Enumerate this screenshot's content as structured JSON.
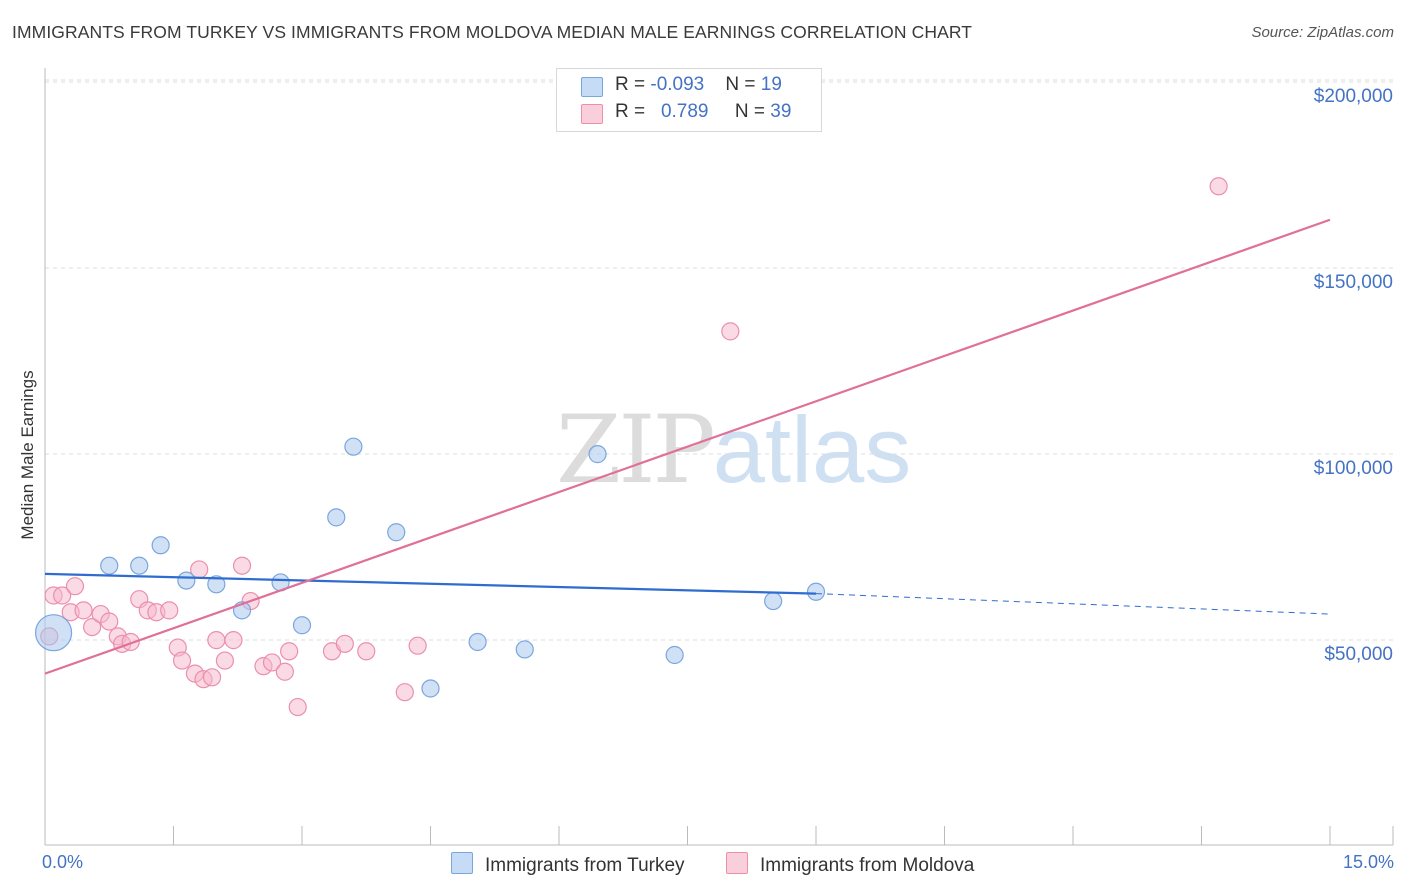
{
  "title": "IMMIGRANTS FROM TURKEY VS IMMIGRANTS FROM MOLDOVA MEDIAN MALE EARNINGS CORRELATION CHART",
  "source": "Source: ZipAtlas.com",
  "watermark": {
    "part1": "ZIP",
    "part2": "atlas"
  },
  "legend": {
    "turkey": {
      "r_label": "R = ",
      "r_value": "-0.093",
      "n_label": "N = ",
      "n_value": "19"
    },
    "moldova": {
      "r_label": "R = ",
      "r_value": "0.789",
      "n_label": "N = ",
      "n_value": "39"
    }
  },
  "colors": {
    "turkey_fill": "#a9c8ef",
    "turkey_stroke": "#7aa6de",
    "turkey_line": "#2f6ccf",
    "moldova_fill": "#f5b7cb",
    "moldova_stroke": "#ec8fac",
    "moldova_line": "#e07099",
    "axis_text": "#4472c4"
  },
  "chart_data": {
    "type": "scatter",
    "title": "IMMIGRANTS FROM TURKEY VS IMMIGRANTS FROM MOLDOVA MEDIAN MALE EARNINGS CORRELATION CHART",
    "xlabel": "",
    "ylabel": "Median Male Earnings",
    "xlim": [
      0,
      15
    ],
    "ylim": [
      5000,
      205000
    ],
    "x_tick_labels": [
      {
        "value": 0,
        "label": "0.0%"
      },
      {
        "value": 15,
        "label": "15.0%"
      }
    ],
    "y_tick_labels": [
      {
        "value": 200000,
        "label": "$200,000"
      },
      {
        "value": 150000,
        "label": "$150,000"
      },
      {
        "value": 100000,
        "label": "$100,000"
      },
      {
        "value": 50000,
        "label": "$50,000"
      }
    ],
    "grid": true,
    "legend_position": "bottom-center",
    "series": [
      {
        "name": "Immigrants from Turkey",
        "color": "#a9c8ef",
        "points": [
          {
            "x": 0.1,
            "y": 56000,
            "large": true
          },
          {
            "x": 0.75,
            "y": 74000
          },
          {
            "x": 1.1,
            "y": 74000
          },
          {
            "x": 1.35,
            "y": 79500
          },
          {
            "x": 1.65,
            "y": 70000
          },
          {
            "x": 2.0,
            "y": 69000
          },
          {
            "x": 2.3,
            "y": 62000
          },
          {
            "x": 2.75,
            "y": 69500
          },
          {
            "x": 3.0,
            "y": 58000
          },
          {
            "x": 3.4,
            "y": 87000
          },
          {
            "x": 3.6,
            "y": 106000
          },
          {
            "x": 4.1,
            "y": 83000
          },
          {
            "x": 4.5,
            "y": 41000
          },
          {
            "x": 5.05,
            "y": 53500
          },
          {
            "x": 5.6,
            "y": 51500
          },
          {
            "x": 6.45,
            "y": 104000
          },
          {
            "x": 7.35,
            "y": 50000
          },
          {
            "x": 8.5,
            "y": 64500
          },
          {
            "x": 9.0,
            "y": 67000
          }
        ],
        "trend": {
          "x1": 0,
          "y1": 71800,
          "x2": 9.0,
          "y2": 66500,
          "dashed_to_x": 15,
          "dashed_to_y": 61000
        }
      },
      {
        "name": "Immigrants from Moldova",
        "color": "#f5b7cb",
        "points": [
          {
            "x": 0.05,
            "y": 55000
          },
          {
            "x": 0.1,
            "y": 66000
          },
          {
            "x": 0.2,
            "y": 66000
          },
          {
            "x": 0.35,
            "y": 68500
          },
          {
            "x": 0.3,
            "y": 61500
          },
          {
            "x": 0.45,
            "y": 62000
          },
          {
            "x": 0.55,
            "y": 57500
          },
          {
            "x": 0.65,
            "y": 61000
          },
          {
            "x": 0.75,
            "y": 59000
          },
          {
            "x": 0.85,
            "y": 55000
          },
          {
            "x": 0.9,
            "y": 53000
          },
          {
            "x": 1.0,
            "y": 53500
          },
          {
            "x": 1.1,
            "y": 65000
          },
          {
            "x": 1.2,
            "y": 62000
          },
          {
            "x": 1.3,
            "y": 61500
          },
          {
            "x": 1.45,
            "y": 62000
          },
          {
            "x": 1.55,
            "y": 52000
          },
          {
            "x": 1.6,
            "y": 48500
          },
          {
            "x": 1.75,
            "y": 45000
          },
          {
            "x": 1.8,
            "y": 73000
          },
          {
            "x": 1.85,
            "y": 43500
          },
          {
            "x": 1.95,
            "y": 44000
          },
          {
            "x": 2.0,
            "y": 54000
          },
          {
            "x": 2.1,
            "y": 48500
          },
          {
            "x": 2.2,
            "y": 54000
          },
          {
            "x": 2.3,
            "y": 74000
          },
          {
            "x": 2.4,
            "y": 64500
          },
          {
            "x": 2.55,
            "y": 47000
          },
          {
            "x": 2.65,
            "y": 48000
          },
          {
            "x": 2.8,
            "y": 45500
          },
          {
            "x": 2.85,
            "y": 51000
          },
          {
            "x": 2.95,
            "y": 36000
          },
          {
            "x": 3.35,
            "y": 51000
          },
          {
            "x": 3.5,
            "y": 53000
          },
          {
            "x": 3.75,
            "y": 51000
          },
          {
            "x": 4.2,
            "y": 40000
          },
          {
            "x": 4.35,
            "y": 52500
          },
          {
            "x": 8.0,
            "y": 137000
          },
          {
            "x": 13.7,
            "y": 176000
          }
        ],
        "trend": {
          "x1": 0,
          "y1": 45000,
          "x2": 15,
          "y2": 167000
        }
      }
    ]
  }
}
